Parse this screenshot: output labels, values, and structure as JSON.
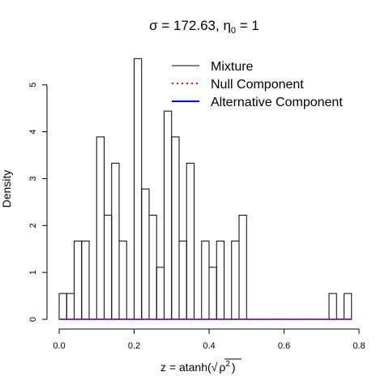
{
  "chart_data": {
    "type": "bar",
    "title": {
      "sigma_symbol": "σ",
      "eq1": " = 172.63, ",
      "eta_symbol": "η",
      "eta_sub": "0",
      "eq2": " = 1"
    },
    "xlabel": {
      "prefix": "z = atanh(",
      "radicand_base": "ρ",
      "radicand_exp": "2",
      "suffix": ")"
    },
    "ylabel": "Density",
    "xlim": [
      0,
      0.8
    ],
    "ylim": [
      0,
      5.6
    ],
    "x_ticks": [
      0,
      0.2,
      0.4,
      0.6,
      0.8
    ],
    "x_tick_labels": [
      "0.0",
      "0.2",
      "0.4",
      "0.6",
      "0.8"
    ],
    "y_ticks": [
      0,
      1,
      2,
      3,
      4,
      5
    ],
    "y_tick_labels": [
      "0",
      "1",
      "2",
      "3",
      "4",
      "5"
    ],
    "bin_width": 0.02,
    "bin_starts": [
      0.0,
      0.02,
      0.04,
      0.06,
      0.08,
      0.1,
      0.12,
      0.14,
      0.16,
      0.18,
      0.2,
      0.22,
      0.24,
      0.26,
      0.28,
      0.3,
      0.32,
      0.34,
      0.36,
      0.38,
      0.4,
      0.42,
      0.44,
      0.46,
      0.48,
      0.5,
      0.52,
      0.54,
      0.56,
      0.58,
      0.6,
      0.62,
      0.64,
      0.66,
      0.68,
      0.7,
      0.72,
      0.74,
      0.76
    ],
    "densities": [
      0.55,
      0.55,
      1.67,
      1.67,
      0,
      3.89,
      2.22,
      3.33,
      1.67,
      0,
      5.56,
      2.78,
      2.22,
      1.11,
      4.44,
      3.89,
      1.67,
      3.33,
      0,
      1.67,
      1.11,
      1.67,
      0,
      1.67,
      2.22,
      0,
      0,
      0,
      0,
      0,
      0,
      0,
      0,
      0,
      0,
      0,
      0.55,
      0,
      0.55
    ],
    "series": [
      {
        "name": "Mixture",
        "color": "#000000",
        "style": "solid"
      },
      {
        "name": "Null Component",
        "color": "#ff0000",
        "style": "dotted"
      },
      {
        "name": "Alternative Component",
        "color": "#0000ff",
        "style": "solid"
      }
    ],
    "legend_position": "top-right",
    "grid": false
  }
}
